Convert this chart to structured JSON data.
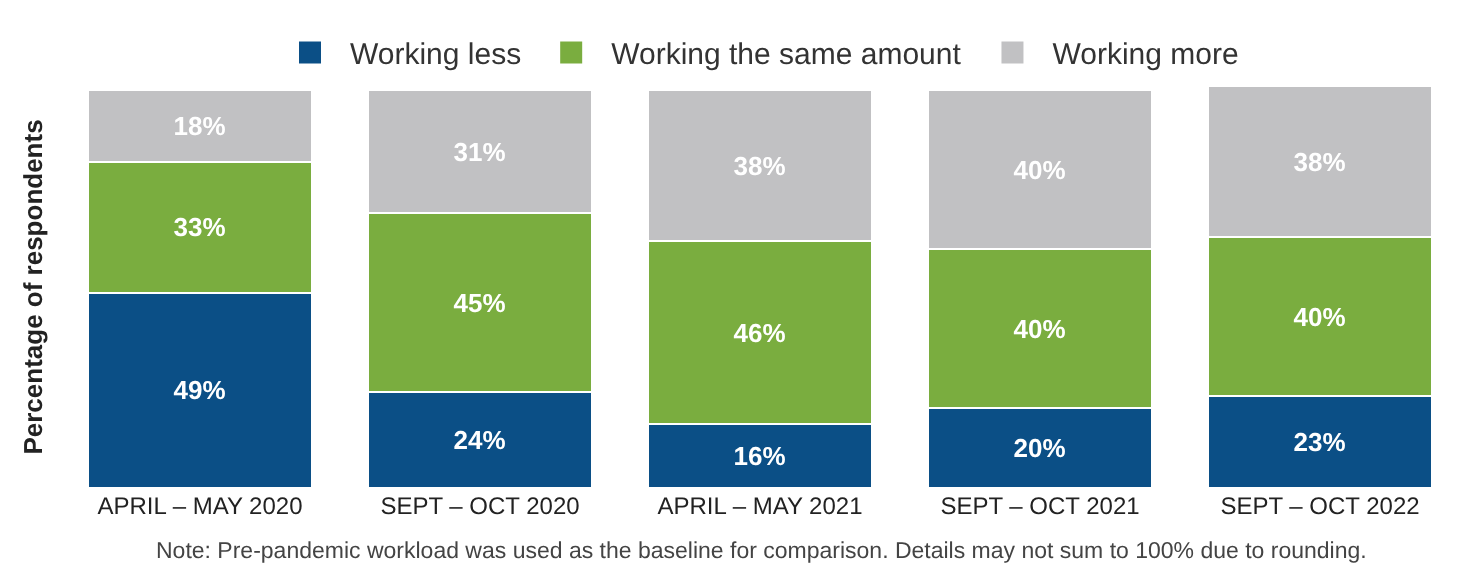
{
  "chart_data": {
    "type": "bar",
    "stacked": true,
    "ylabel": "Percentage of respondents",
    "categories": [
      "APRIL – MAY 2020",
      "SEPT – OCT 2020",
      "APRIL – MAY 2021",
      "SEPT – OCT 2021",
      "SEPT – OCT 2022"
    ],
    "series": [
      {
        "name": "Working less",
        "color": "#0b4f86",
        "values": [
          49,
          24,
          16,
          20,
          23
        ],
        "value_labels": [
          "49%",
          "24%",
          "16%",
          "20%",
          "23%"
        ]
      },
      {
        "name": "Working the same amount",
        "color": "#7aad3f",
        "values": [
          33,
          45,
          46,
          40,
          40
        ],
        "value_labels": [
          "33%",
          "45%",
          "46%",
          "40%",
          "40%"
        ]
      },
      {
        "name": "Working more",
        "color": "#c1c1c3",
        "values": [
          18,
          31,
          38,
          40,
          38
        ],
        "value_labels": [
          "18%",
          "31%",
          "38%",
          "40%",
          "38%"
        ]
      }
    ],
    "legend": "top",
    "annotations": [
      "Note: Pre-pandemic workload was used as the baseline for comparison. Details may not sum to 100% due to rounding."
    ]
  }
}
